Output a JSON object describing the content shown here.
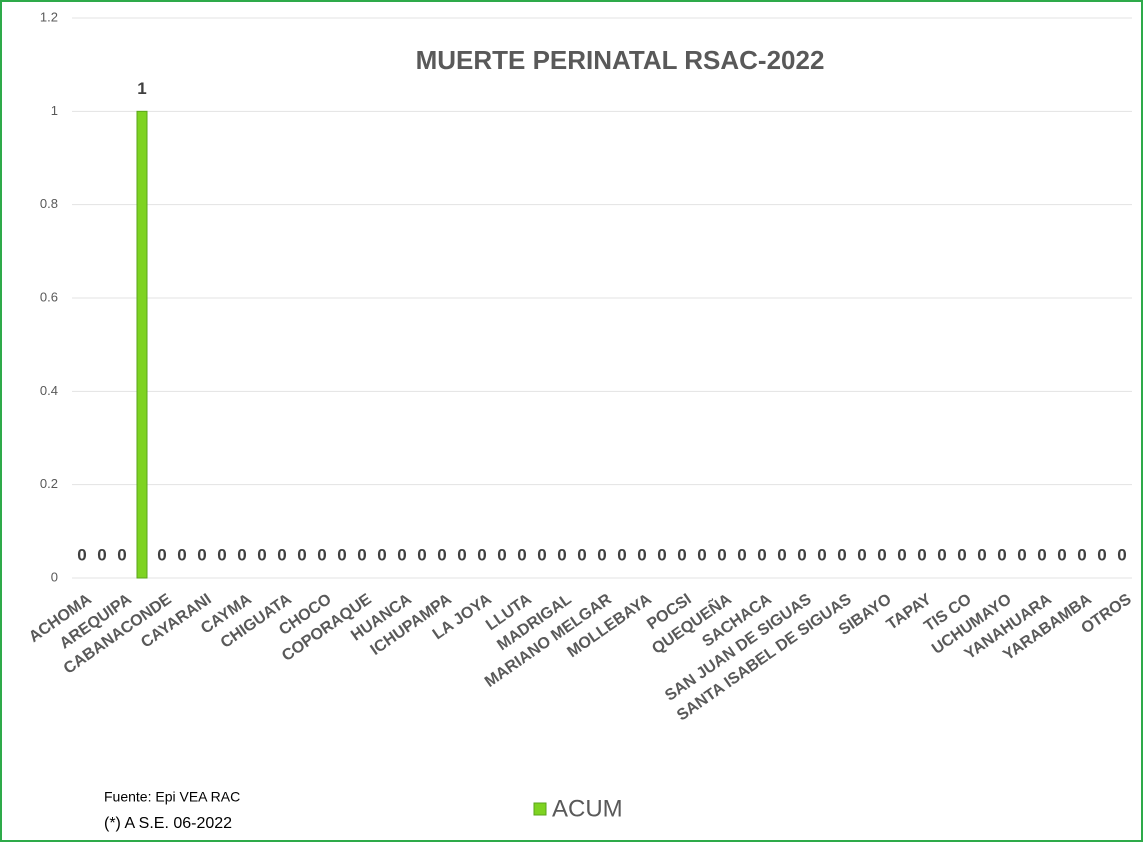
{
  "chart_data": {
    "type": "bar",
    "title": "MUERTE PERINATAL RSAC-2022",
    "categories": [
      "ACHOMA",
      null,
      "AREQUIPA",
      null,
      "CABANACONDE",
      null,
      "CAYARANI",
      null,
      "CAYMA",
      null,
      "CHIGUATA",
      null,
      "CHOCO",
      null,
      "COPORAQUE",
      null,
      "HUANCA",
      null,
      "ICHUPAMPA",
      null,
      "LA JOYA",
      null,
      "LLUTA",
      null,
      "MADRIGAL",
      null,
      "MARIANO MELGAR",
      null,
      "MOLLEBAYA",
      null,
      "POCSI",
      null,
      "QUEQUEÑA",
      null,
      "SACHACA",
      null,
      "SAN JUAN DE SIGUAS",
      null,
      "SANTA ISABEL DE SIGUAS",
      null,
      "SIBAYO",
      null,
      "TAPAY",
      null,
      "TIS CO",
      null,
      "UCHUMAYO",
      null,
      "YANAHUARA",
      null,
      "YARABAMBA",
      null,
      "OTROS"
    ],
    "series": [
      {
        "name": "ACUM",
        "color": "#7ed321",
        "values": [
          0,
          0,
          0,
          1,
          0,
          0,
          0,
          0,
          0,
          0,
          0,
          0,
          0,
          0,
          0,
          0,
          0,
          0,
          0,
          0,
          0,
          0,
          0,
          0,
          0,
          0,
          0,
          0,
          0,
          0,
          0,
          0,
          0,
          0,
          0,
          0,
          0,
          0,
          0,
          0,
          0,
          0,
          0,
          0,
          0,
          0,
          0,
          0,
          0,
          0,
          0,
          0,
          0
        ]
      }
    ],
    "ylim": [
      0,
      1.2
    ],
    "yticks": [
      0,
      0.2,
      0.4,
      0.6,
      0.8,
      1,
      1.2
    ],
    "grid": true,
    "notes": [
      "Fuente:  Epi VEA RAC",
      "(*) A S.E. 06-2022"
    ]
  }
}
